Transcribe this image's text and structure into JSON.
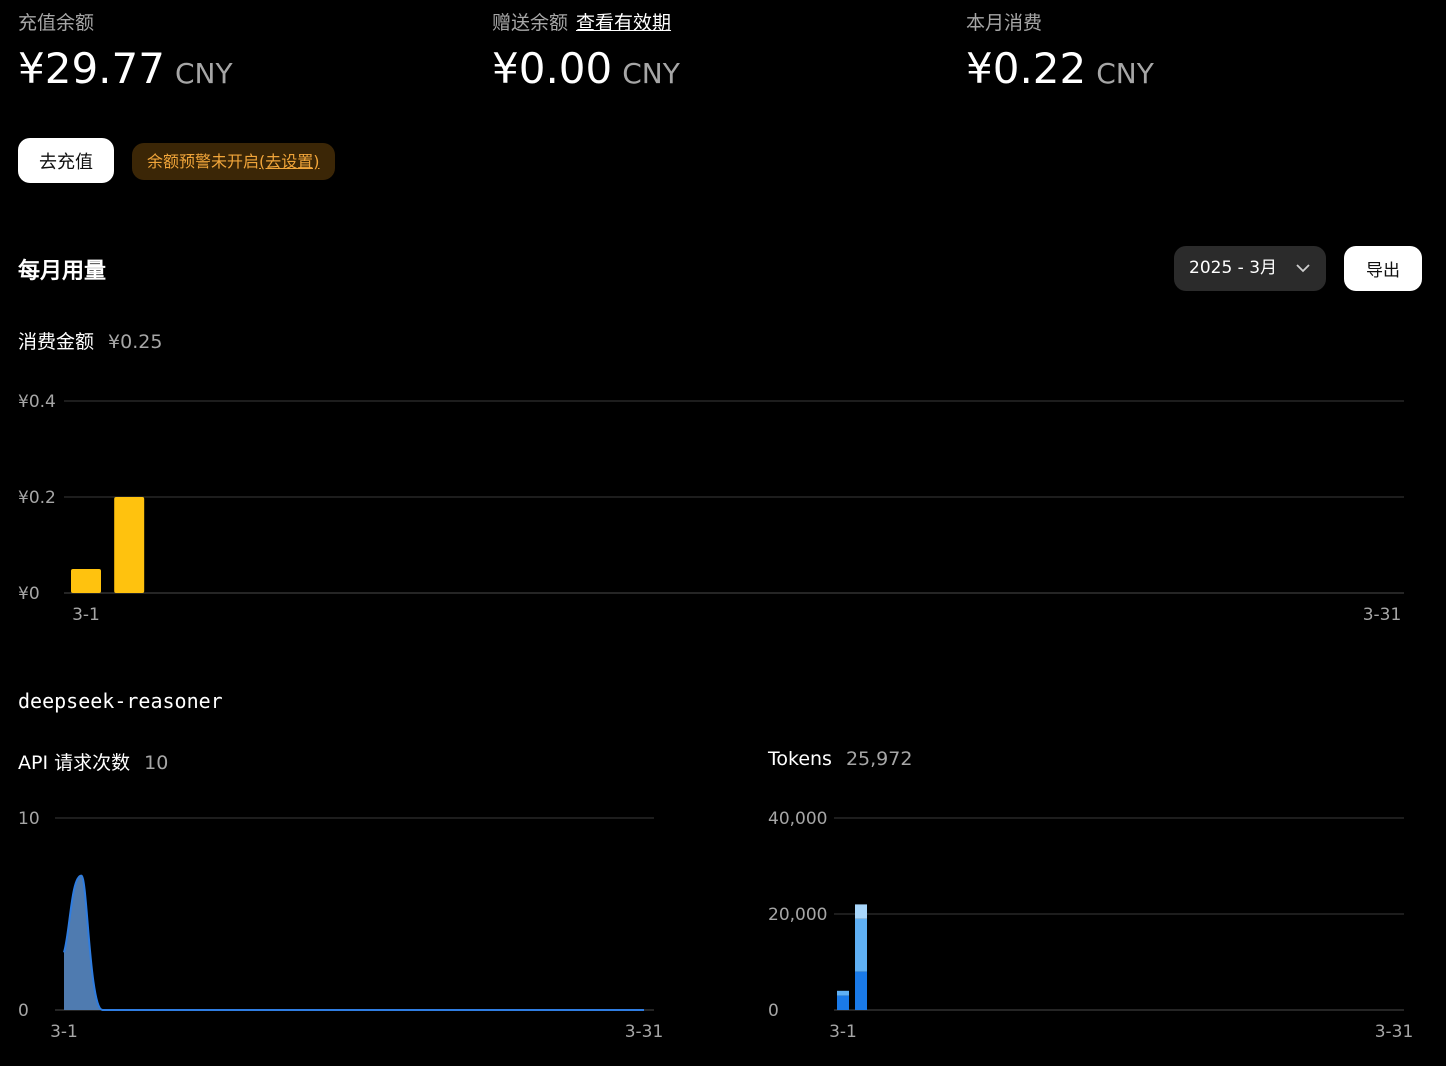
{
  "balances": {
    "recharge": {
      "label": "充值余额",
      "amount": "¥29.77",
      "unit": "CNY"
    },
    "gift": {
      "label": "赠送余额",
      "link": "查看有效期",
      "amount": "¥0.00",
      "unit": "CNY"
    },
    "month_spend": {
      "label": "本月消费",
      "amount": "¥0.22",
      "unit": "CNY"
    }
  },
  "actions": {
    "recharge_button": "去充值",
    "alert_text": "余额预警未开启",
    "alert_link": "(去设置)"
  },
  "monthly_usage": {
    "title": "每月用量",
    "month_selector": "2025 - 3月",
    "export_button": "导出",
    "spend_label": "消费金额",
    "spend_value": "¥0.25"
  },
  "model": {
    "name": "deepseek-reasoner",
    "requests_label": "API 请求次数",
    "requests_value": "10",
    "tokens_label": "Tokens",
    "tokens_value": "25,972"
  },
  "colors": {
    "spend_bar": "#ffc20e",
    "requests_line": "#2f7de1",
    "requests_fill": "#4f7bb0",
    "tokens_dark": "#1a7ae8",
    "tokens_mid": "#5fb0f4",
    "tokens_light": "#a8d6fb"
  },
  "chart_data": [
    {
      "type": "bar",
      "name": "spend",
      "x": [
        "3-1",
        "3-2"
      ],
      "values": [
        0.05,
        0.2
      ],
      "ylim": [
        0,
        0.4
      ],
      "yticks": [
        "¥0",
        "¥0.2",
        "¥0.4"
      ],
      "ytick_values": [
        0,
        0.2,
        0.4
      ],
      "xticks": [
        "3-1",
        "3-31"
      ],
      "day_range": [
        1,
        31
      ]
    },
    {
      "type": "area",
      "name": "api_requests",
      "x": [
        "3-1",
        "3-2",
        "3-3"
      ],
      "values": [
        3,
        7,
        0
      ],
      "ylim": [
        0,
        10
      ],
      "yticks": [
        "0",
        "10"
      ],
      "ytick_values": [
        0,
        10
      ],
      "xticks": [
        "3-1",
        "3-31"
      ],
      "day_range": [
        1,
        31
      ]
    },
    {
      "type": "bar",
      "name": "tokens",
      "stacked": true,
      "x": [
        "3-1",
        "3-2"
      ],
      "series": [
        {
          "values": [
            3000,
            8000
          ]
        },
        {
          "values": [
            1000,
            11000
          ]
        },
        {
          "values": [
            0,
            3000
          ]
        }
      ],
      "ylim": [
        0,
        40000
      ],
      "yticks": [
        "0",
        "20,000",
        "40,000"
      ],
      "ytick_values": [
        0,
        20000,
        40000
      ],
      "xticks": [
        "3-1",
        "3-31"
      ],
      "day_range": [
        1,
        31
      ]
    }
  ]
}
